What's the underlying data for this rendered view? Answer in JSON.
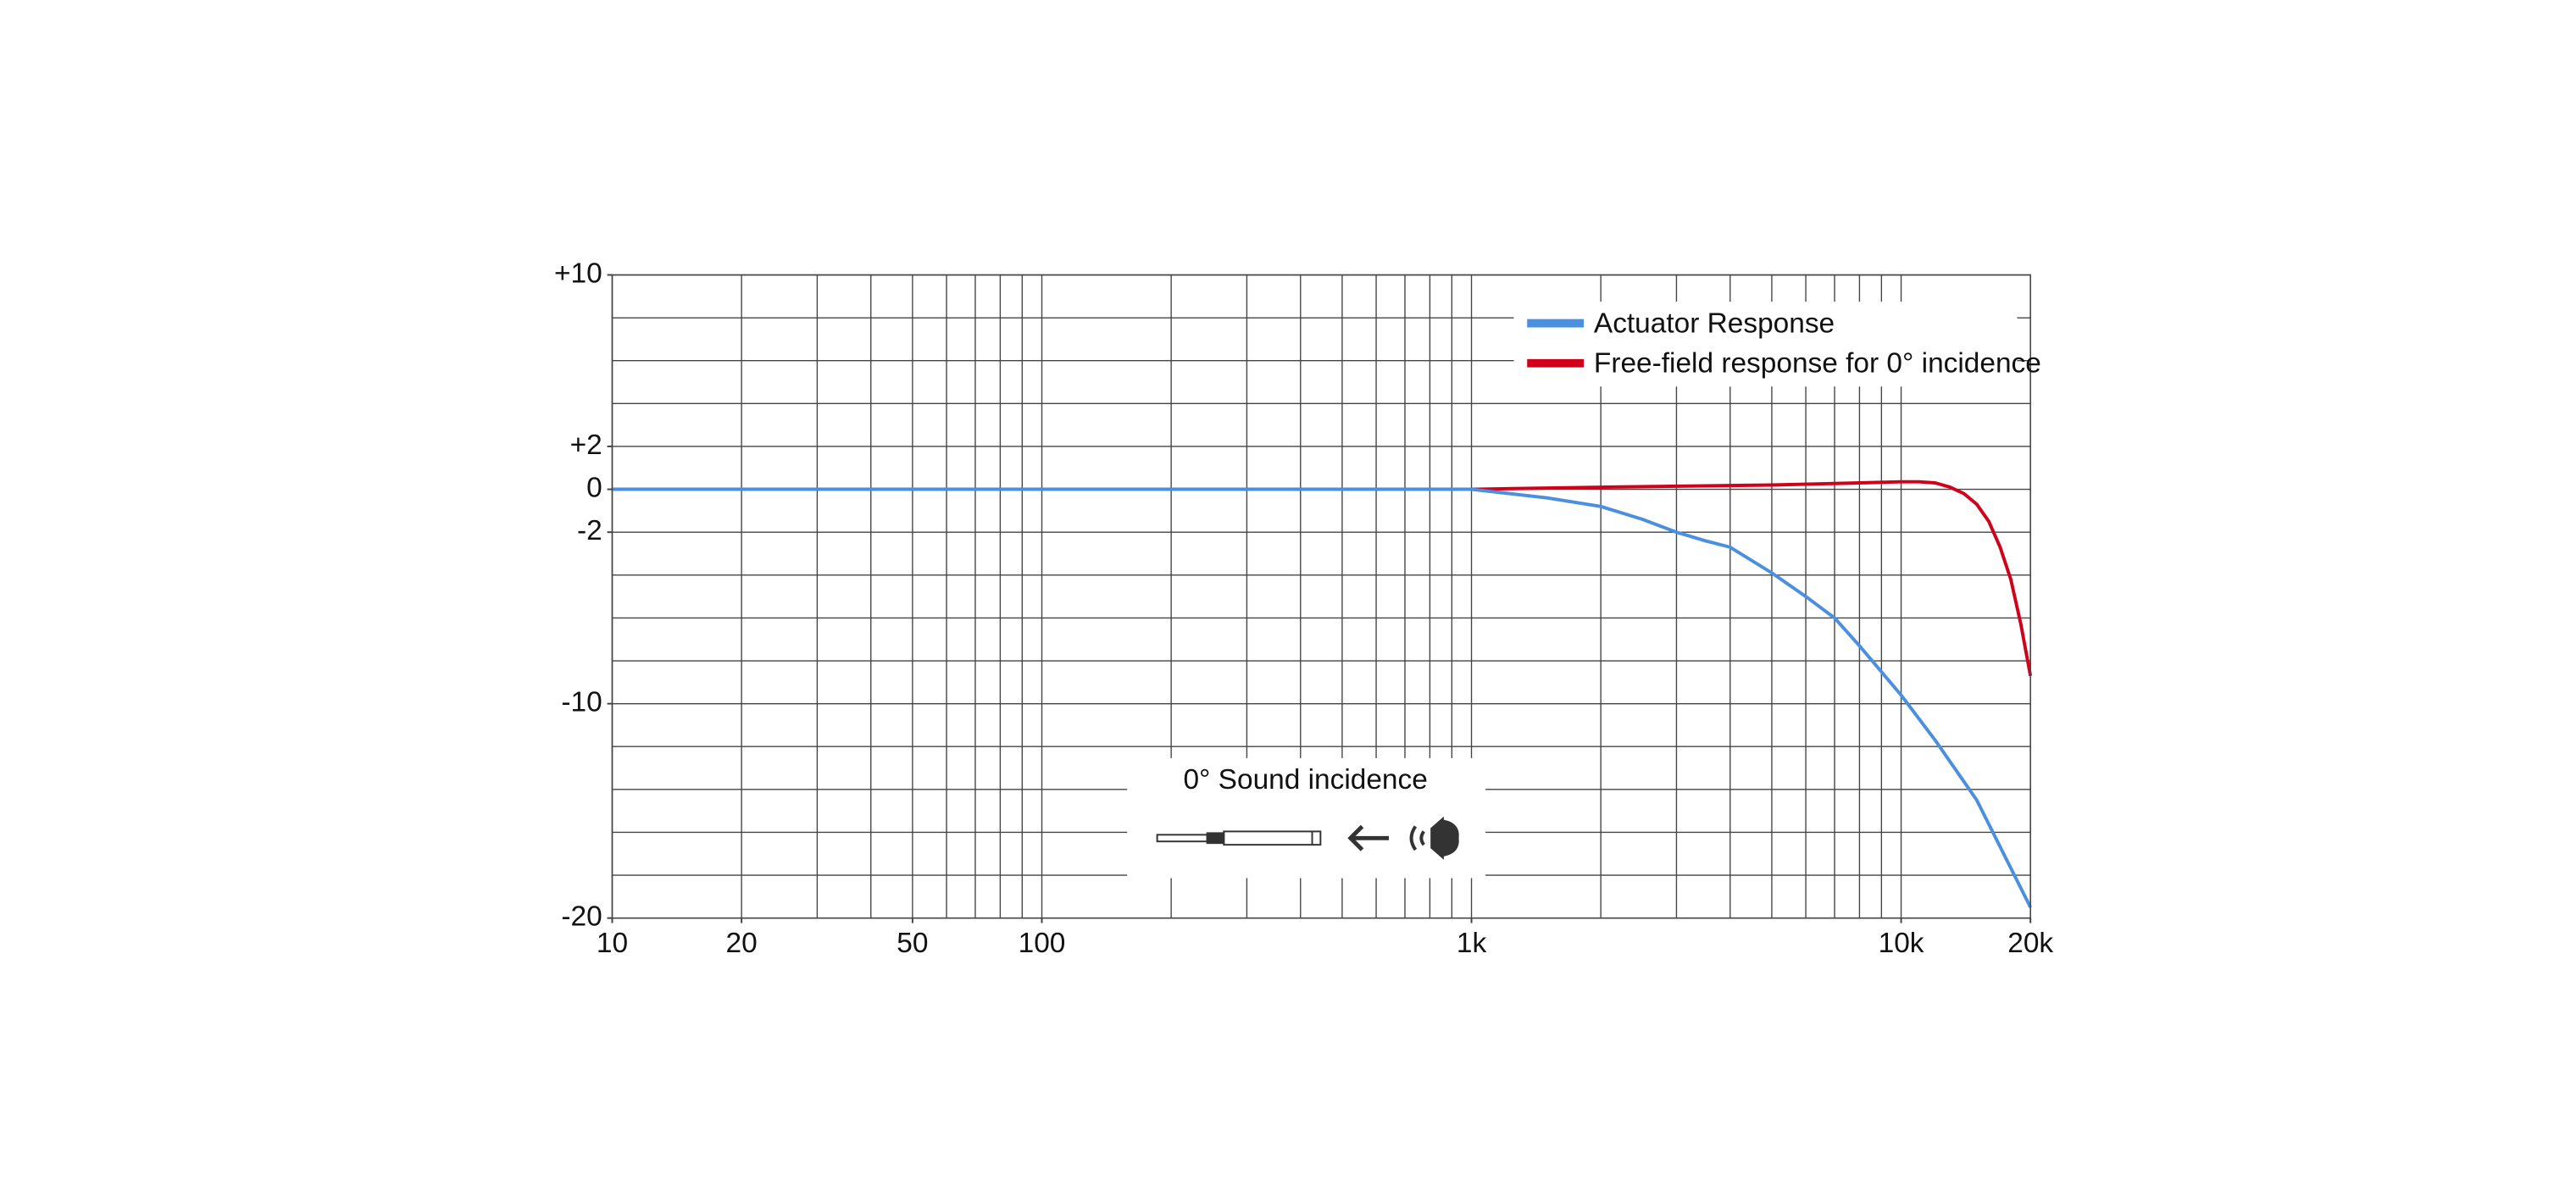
{
  "chart_data": {
    "type": "line",
    "xscale": "log",
    "xlim": [
      10,
      20000
    ],
    "ylim": [
      -20,
      10
    ],
    "xticks": [
      10,
      20,
      50,
      100,
      {
        "value": 1000,
        "label": "1k"
      },
      {
        "value": 10000,
        "label": "10k"
      },
      {
        "value": 20000,
        "label": "20k"
      }
    ],
    "yticks": [
      {
        "value": 10,
        "label": "+10"
      },
      {
        "value": 2,
        "label": "+2"
      },
      0,
      -2,
      -10,
      -20
    ],
    "xgrid": [
      10,
      20,
      30,
      40,
      50,
      60,
      70,
      80,
      90,
      100,
      200,
      300,
      400,
      500,
      600,
      700,
      800,
      900,
      1000,
      2000,
      3000,
      4000,
      5000,
      6000,
      7000,
      8000,
      9000,
      10000,
      20000
    ],
    "ygrid": [
      10,
      8,
      6,
      4,
      2,
      0,
      -2,
      -4,
      -6,
      -8,
      -10,
      -12,
      -14,
      -16,
      -18,
      -20
    ],
    "grid": true,
    "legend": "top-right",
    "annotation": "0° Sound incidence",
    "series": [
      {
        "name": "Actuator Response",
        "color": "#4a8fe0",
        "x": [
          10,
          100,
          1000,
          1500,
          2000,
          2500,
          3000,
          3500,
          4000,
          5000,
          6000,
          7000,
          8000,
          10000,
          12000,
          15000,
          20000
        ],
        "values": [
          0,
          0,
          0,
          -0.4,
          -0.8,
          -1.4,
          -2.0,
          -2.4,
          -2.7,
          -3.9,
          -5.0,
          -6.0,
          -7.3,
          -9.6,
          -11.7,
          -14.5,
          -19.5
        ]
      },
      {
        "name": "Free-field response for 0° incidence",
        "color": "#d0021b",
        "x": [
          10,
          100,
          1000,
          2000,
          5000,
          8000,
          10000,
          11000,
          12000,
          13000,
          14000,
          15000,
          16000,
          17000,
          18000,
          19000,
          20000
        ],
        "values": [
          0,
          0,
          0,
          0.1,
          0.2,
          0.3,
          0.35,
          0.35,
          0.3,
          0.1,
          -0.2,
          -0.7,
          -1.5,
          -2.7,
          -4.2,
          -6.3,
          -8.7
        ]
      }
    ]
  }
}
